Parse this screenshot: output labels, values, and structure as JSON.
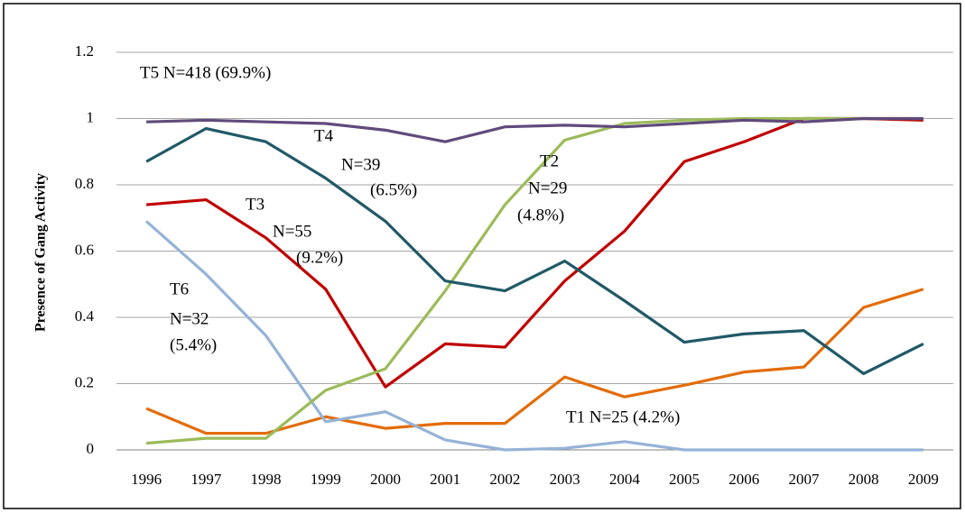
{
  "chart_data": {
    "type": "line",
    "y_label": "Presence of Gang Activity",
    "categories": [
      "1996",
      "1997",
      "1998",
      "1999",
      "2000",
      "2001",
      "2002",
      "2003",
      "2004",
      "2005",
      "2006",
      "2007",
      "2008",
      "2009"
    ],
    "ylim": [
      0,
      1.2
    ],
    "yticks": [
      0,
      0.2,
      0.4,
      0.6,
      0.8,
      1,
      1.2
    ],
    "grid": true,
    "series": [
      {
        "color": "#604a7b",
        "values": [
          0.99,
          0.995,
          0.99,
          0.985,
          0.965,
          0.93,
          0.975,
          0.98,
          0.975,
          0.985,
          0.995,
          0.99,
          1.0,
          1.0
        ]
      },
      {
        "color": "#215968",
        "values": [
          0.87,
          0.97,
          0.93,
          0.82,
          0.69,
          0.51,
          0.48,
          0.57,
          0.45,
          0.325,
          0.35,
          0.36,
          0.23,
          0.32
        ]
      },
      {
        "color": "#9bbb59",
        "values": [
          0.02,
          0.035,
          0.035,
          0.18,
          0.245,
          0.48,
          0.74,
          0.935,
          0.985,
          0.995,
          1.0,
          1.0,
          1.0,
          1.0
        ]
      },
      {
        "color": "#c00000",
        "values": [
          0.74,
          0.755,
          0.64,
          0.485,
          0.19,
          0.32,
          0.31,
          0.51,
          0.66,
          0.87,
          0.93,
          1.0,
          1.0,
          0.995
        ]
      },
      {
        "color": "#95b3d7",
        "values": [
          0.69,
          0.53,
          0.345,
          0.085,
          0.115,
          0.03,
          0,
          0.005,
          0.025,
          0,
          0,
          0,
          0,
          0
        ]
      },
      {
        "color": "#e36c09",
        "values": [
          0.125,
          0.05,
          0.05,
          0.1,
          0.065,
          0.08,
          0.08,
          0.22,
          0.16,
          0.195,
          0.235,
          0.25,
          0.43,
          0.485
        ]
      }
    ],
    "annotations": [
      {
        "lines": [
          "T5  N=418 (69.9%)"
        ]
      },
      {
        "lines": [
          "T4",
          "N=39",
          "(6.5%)"
        ]
      },
      {
        "lines": [
          "T2",
          "N=29",
          "(4.8%)"
        ]
      },
      {
        "lines": [
          "T3",
          "N=55",
          "(9.2%)"
        ]
      },
      {
        "lines": [
          "T6",
          "N=32",
          "(5.4%)"
        ]
      },
      {
        "lines": [
          "T1  N=25 (4.2%)"
        ]
      }
    ]
  }
}
